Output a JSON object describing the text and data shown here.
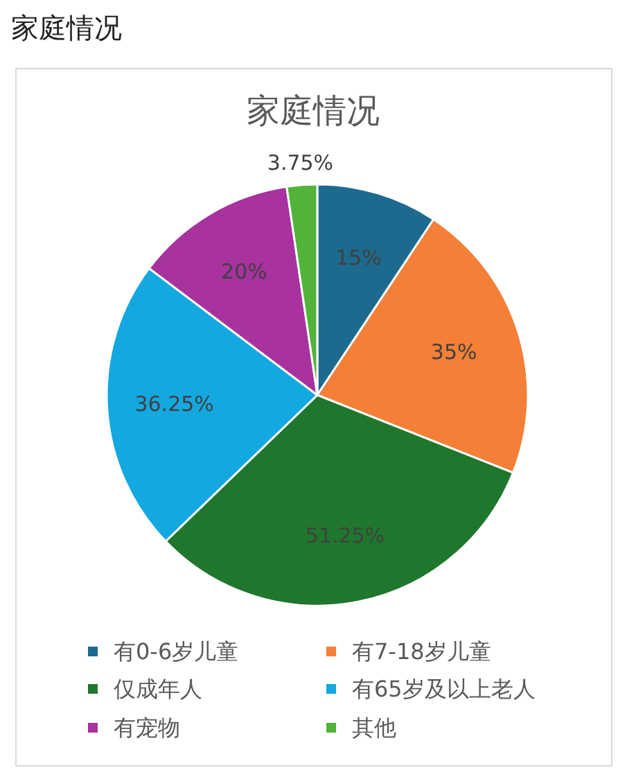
{
  "chart_data": {
    "type": "pie",
    "title": "家庭情况",
    "annotations": [
      "家庭情况"
    ],
    "categories": [
      "有0-6岁儿童",
      "有7-18岁儿童",
      "仅成年人",
      "有65岁及以上老人",
      "有宠物",
      "其他"
    ],
    "values": [
      15,
      35,
      51.25,
      36.25,
      20,
      3.75
    ],
    "colors": [
      "#1d6a8f",
      "#f47f37",
      "#1f772e",
      "#13a8e0",
      "#a8329e",
      "#52b33a"
    ],
    "value_labels": [
      "15%",
      "35%",
      "51.25%",
      "36.25%",
      "20%",
      "3.75%"
    ],
    "legend": "bottom"
  }
}
